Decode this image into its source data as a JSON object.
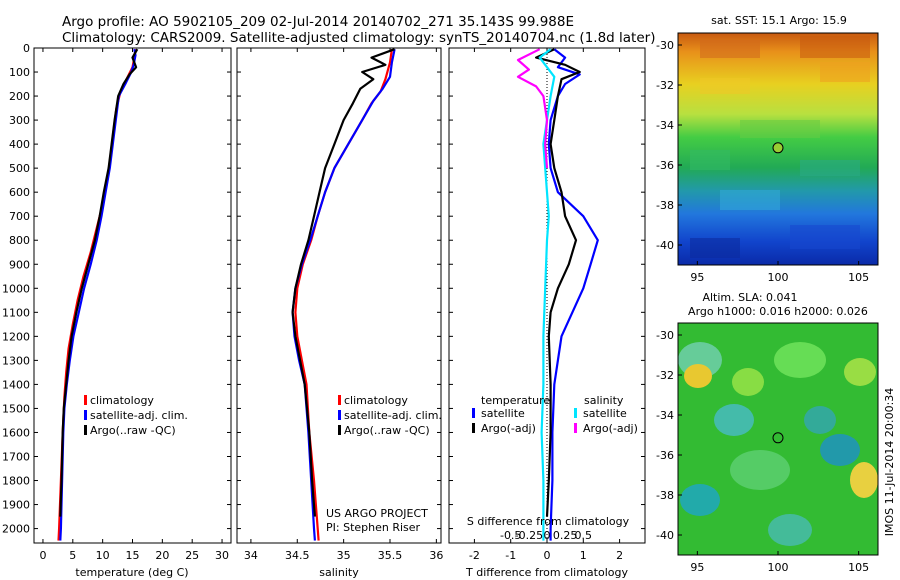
{
  "header": {
    "line1": "Argo profile: AO 5902105_209 02-Jul-2014 20140702_271 35.143S 99.988E",
    "line2": "Climatology: CARS2009. Satellite-adjusted climatology: synTS_20140704.nc (1.8d later)"
  },
  "colors": {
    "climatology": "#ff0000",
    "satellite": "#0000ff",
    "argo": "#000000",
    "sal_satellite": "#00e5ff",
    "sal_argo": "#ff00ff"
  },
  "chart_data": [
    {
      "type": "line",
      "panel": "temperature",
      "xlabel": "temperature (deg C)",
      "xticks": [
        0,
        5,
        10,
        15,
        20,
        25,
        30
      ],
      "xlim": [
        -1.5,
        31.5
      ],
      "ylim": [
        2060,
        0
      ],
      "yticks": [
        0,
        100,
        200,
        300,
        400,
        500,
        600,
        700,
        800,
        900,
        1000,
        1100,
        1200,
        1300,
        1400,
        1500,
        1600,
        1700,
        1800,
        1900,
        2000
      ],
      "legend": [
        "climatology",
        "satellite-adj. clim.",
        "Argo(..raw -QC)"
      ],
      "series": [
        {
          "name": "climatology",
          "color": "#ff0000",
          "points": [
            [
              15.5,
              5
            ],
            [
              15.3,
              40
            ],
            [
              15.0,
              80
            ],
            [
              14.0,
              130
            ],
            [
              13.0,
              180
            ],
            [
              12.3,
              250
            ],
            [
              11.8,
              350
            ],
            [
              11.3,
              450
            ],
            [
              10.8,
              550
            ],
            [
              10.0,
              650
            ],
            [
              9.0,
              750
            ],
            [
              8.0,
              850
            ],
            [
              6.8,
              950
            ],
            [
              5.8,
              1050
            ],
            [
              5.0,
              1150
            ],
            [
              4.3,
              1250
            ],
            [
              3.9,
              1350
            ],
            [
              3.6,
              1450
            ],
            [
              3.3,
              1600
            ],
            [
              3.0,
              1800
            ],
            [
              2.7,
              2000
            ],
            [
              2.6,
              2050
            ]
          ]
        },
        {
          "name": "satellite-adj. clim.",
          "color": "#0000ff",
          "points": [
            [
              15.3,
              5
            ],
            [
              15.5,
              30
            ],
            [
              15.2,
              70
            ],
            [
              14.8,
              100
            ],
            [
              13.8,
              150
            ],
            [
              12.7,
              200
            ],
            [
              12.2,
              300
            ],
            [
              11.7,
              400
            ],
            [
              11.2,
              500
            ],
            [
              10.5,
              600
            ],
            [
              9.8,
              700
            ],
            [
              9.0,
              800
            ],
            [
              8.0,
              900
            ],
            [
              6.9,
              1000
            ],
            [
              6.0,
              1100
            ],
            [
              5.1,
              1200
            ],
            [
              4.5,
              1300
            ],
            [
              4.0,
              1400
            ],
            [
              3.6,
              1500
            ],
            [
              3.4,
              1600
            ],
            [
              3.2,
              1800
            ],
            [
              3.0,
              2000
            ],
            [
              2.9,
              2050
            ]
          ]
        },
        {
          "name": "Argo(..raw -QC)",
          "color": "#000000",
          "points": [
            [
              15.8,
              5
            ],
            [
              15.0,
              40
            ],
            [
              15.6,
              80
            ],
            [
              14.5,
              110
            ],
            [
              13.5,
              150
            ],
            [
              12.6,
              200
            ],
            [
              12.0,
              300
            ],
            [
              11.5,
              400
            ],
            [
              11.0,
              500
            ],
            [
              10.2,
              600
            ],
            [
              9.5,
              700
            ],
            [
              8.7,
              800
            ],
            [
              7.6,
              900
            ],
            [
              6.5,
              1000
            ],
            [
              5.6,
              1100
            ],
            [
              4.8,
              1200
            ],
            [
              4.3,
              1300
            ],
            [
              3.9,
              1400
            ],
            [
              3.5,
              1500
            ],
            [
              3.3,
              1600
            ],
            [
              3.1,
              1800
            ],
            [
              2.9,
              1950
            ]
          ]
        }
      ]
    },
    {
      "type": "line",
      "panel": "salinity",
      "xlabel": "salinity",
      "xticks": [
        34,
        34.5,
        35,
        35.5,
        36
      ],
      "xlim": [
        33.85,
        36.05
      ],
      "ylim": [
        2060,
        0
      ],
      "legend": [
        "climatology",
        "satellite-adj. clim.",
        "Argo(..raw -QC)"
      ],
      "credit1": "US ARGO PROJECT",
      "credit2": "PI: Stephen Riser",
      "series": [
        {
          "name": "climatology",
          "color": "#ff0000",
          "points": [
            [
              35.52,
              5
            ],
            [
              35.5,
              60
            ],
            [
              35.45,
              130
            ],
            [
              35.4,
              180
            ],
            [
              35.3,
              230
            ],
            [
              35.2,
              300
            ],
            [
              35.05,
              400
            ],
            [
              34.9,
              500
            ],
            [
              34.8,
              600
            ],
            [
              34.72,
              700
            ],
            [
              34.65,
              800
            ],
            [
              34.56,
              900
            ],
            [
              34.5,
              1000
            ],
            [
              34.48,
              1100
            ],
            [
              34.5,
              1200
            ],
            [
              34.55,
              1300
            ],
            [
              34.6,
              1400
            ],
            [
              34.63,
              1600
            ],
            [
              34.68,
              1800
            ],
            [
              34.72,
              2000
            ],
            [
              34.73,
              2050
            ]
          ]
        },
        {
          "name": "satellite-adj. clim.",
          "color": "#0000ff",
          "points": [
            [
              35.55,
              5
            ],
            [
              35.52,
              60
            ],
            [
              35.5,
              120
            ],
            [
              35.42,
              170
            ],
            [
              35.32,
              220
            ],
            [
              35.2,
              300
            ],
            [
              35.05,
              400
            ],
            [
              34.9,
              500
            ],
            [
              34.8,
              600
            ],
            [
              34.72,
              700
            ],
            [
              34.64,
              800
            ],
            [
              34.55,
              900
            ],
            [
              34.48,
              1000
            ],
            [
              34.45,
              1100
            ],
            [
              34.47,
              1200
            ],
            [
              34.52,
              1300
            ],
            [
              34.58,
              1400
            ],
            [
              34.62,
              1600
            ],
            [
              34.65,
              1800
            ],
            [
              34.68,
              2000
            ],
            [
              34.69,
              2050
            ]
          ]
        },
        {
          "name": "Argo(..raw -QC)",
          "color": "#000000",
          "points": [
            [
              35.55,
              5
            ],
            [
              35.3,
              40
            ],
            [
              35.45,
              70
            ],
            [
              35.2,
              100
            ],
            [
              35.32,
              130
            ],
            [
              35.18,
              170
            ],
            [
              35.1,
              230
            ],
            [
              35.0,
              300
            ],
            [
              34.9,
              400
            ],
            [
              34.8,
              500
            ],
            [
              34.74,
              600
            ],
            [
              34.68,
              700
            ],
            [
              34.62,
              800
            ],
            [
              34.54,
              900
            ],
            [
              34.48,
              1000
            ],
            [
              34.45,
              1100
            ],
            [
              34.48,
              1200
            ],
            [
              34.53,
              1300
            ],
            [
              34.58,
              1400
            ],
            [
              34.63,
              1600
            ],
            [
              34.66,
              1800
            ],
            [
              34.69,
              1950
            ]
          ]
        }
      ]
    },
    {
      "type": "line",
      "panel": "difference",
      "xlabel": "T difference from climatology",
      "xticks": [
        -2,
        -1,
        0,
        1,
        2
      ],
      "xlim": [
        -2.7,
        2.7
      ],
      "x2label": "S difference from climatology",
      "x2ticks": [
        "-0.5",
        "-0.25",
        "0",
        "0.25",
        "0.5"
      ],
      "legend_titles": [
        "temperature",
        "salinity"
      ],
      "legend": [
        "satellite",
        "Argo(-adj)",
        "satellite",
        "Argo(-adj)"
      ],
      "series": [
        {
          "name": "temperature satellite",
          "color": "#0000ff",
          "points": [
            [
              0.2,
              5
            ],
            [
              0.5,
              40
            ],
            [
              0.3,
              80
            ],
            [
              0.9,
              110
            ],
            [
              0.5,
              150
            ],
            [
              0.3,
              200
            ],
            [
              0.1,
              300
            ],
            [
              0.05,
              400
            ],
            [
              0.1,
              500
            ],
            [
              0.3,
              600
            ],
            [
              1.0,
              700
            ],
            [
              1.4,
              800
            ],
            [
              1.2,
              900
            ],
            [
              1.0,
              1000
            ],
            [
              0.7,
              1100
            ],
            [
              0.4,
              1200
            ],
            [
              0.2,
              1400
            ],
            [
              0.15,
              1600
            ],
            [
              0.15,
              1800
            ],
            [
              0.1,
              2000
            ],
            [
              0.1,
              2050
            ]
          ]
        },
        {
          "name": "temperature Argo(-adj)",
          "color": "#000000",
          "points": [
            [
              0.2,
              5
            ],
            [
              -0.3,
              40
            ],
            [
              0.5,
              70
            ],
            [
              0.9,
              100
            ],
            [
              0.4,
              130
            ],
            [
              0.3,
              200
            ],
            [
              0.2,
              300
            ],
            [
              0.1,
              400
            ],
            [
              0.2,
              500
            ],
            [
              0.4,
              600
            ],
            [
              0.5,
              700
            ],
            [
              0.8,
              800
            ],
            [
              0.6,
              900
            ],
            [
              0.3,
              1000
            ],
            [
              0.1,
              1100
            ],
            [
              0.05,
              1200
            ],
            [
              0.1,
              1400
            ],
            [
              0.1,
              1600
            ],
            [
              0.05,
              1800
            ],
            [
              0.0,
              1950
            ]
          ]
        },
        {
          "name": "salinity satellite",
          "color": "#00e5ff",
          "points": [
            [
              0.1,
              5
            ],
            [
              -0.2,
              40
            ],
            [
              0.0,
              80
            ],
            [
              0.2,
              120
            ],
            [
              0.1,
              200
            ],
            [
              0.0,
              300
            ],
            [
              -0.1,
              400
            ],
            [
              -0.05,
              500
            ],
            [
              0.0,
              600
            ],
            [
              0.05,
              700
            ],
            [
              0.0,
              800
            ],
            [
              -0.05,
              1000
            ],
            [
              -0.1,
              1200
            ],
            [
              -0.1,
              1400
            ],
            [
              -0.15,
              1600
            ],
            [
              -0.1,
              1800
            ],
            [
              -0.1,
              2000
            ],
            [
              -0.1,
              2050
            ]
          ]
        },
        {
          "name": "salinity Argo(-adj)",
          "color": "#ff00ff",
          "points": [
            [
              -0.2,
              5
            ],
            [
              -0.8,
              50
            ],
            [
              -0.5,
              90
            ],
            [
              -0.8,
              120
            ],
            [
              -0.3,
              160
            ],
            [
              -0.1,
              200
            ],
            [
              0.0,
              300
            ],
            [
              -0.05,
              400
            ],
            [
              0.0,
              500
            ]
          ]
        }
      ]
    },
    {
      "type": "heatmap",
      "panel": "sst_map",
      "title": "sat. SST: 15.1  Argo: 15.9",
      "xticks": [
        95,
        100,
        105
      ],
      "yticks": [
        -30,
        -32,
        -34,
        -36,
        -38,
        -40
      ],
      "xlim": [
        93.8,
        106.2
      ],
      "ylim": [
        -41,
        -29.4
      ],
      "marker": [
        100.0,
        -35.14
      ]
    },
    {
      "type": "heatmap",
      "panel": "sla_map",
      "title1": "Altim. SLA: 0.041",
      "title2": "Argo h1000: 0.016 h2000: 0.026",
      "xticks": [
        95,
        100,
        105
      ],
      "yticks": [
        -30,
        -32,
        -34,
        -36,
        -38,
        -40
      ],
      "xlim": [
        93.8,
        106.2
      ],
      "ylim": [
        -41,
        -29.4
      ],
      "marker": [
        100.0,
        -35.14
      ]
    }
  ],
  "footer": {
    "stamp": "IMOS 11-Jul-2014 20:00:34"
  }
}
